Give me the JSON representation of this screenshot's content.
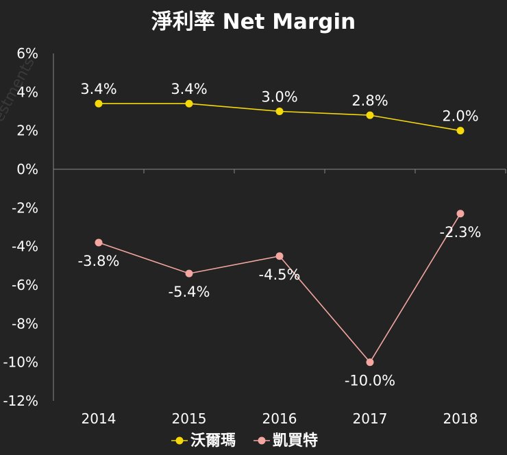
{
  "chart_data": {
    "type": "line",
    "title": "淨利率 Net Margin",
    "categories": [
      "2014",
      "2015",
      "2016",
      "2017",
      "2018"
    ],
    "ylim": [
      -12,
      6
    ],
    "yticks": [
      6,
      4,
      2,
      0,
      -2,
      -4,
      -6,
      -8,
      -10,
      -12
    ],
    "ytick_labels": [
      "6%",
      "4%",
      "2%",
      "0%",
      "-2%",
      "-4%",
      "-6%",
      "-8%",
      "-10%",
      "-12%"
    ],
    "series": [
      {
        "name": "沃爾瑪",
        "values": [
          3.4,
          3.4,
          3.0,
          2.8,
          2.0
        ],
        "labels": [
          "3.4%",
          "3.4%",
          "3.0%",
          "2.8%",
          "2.0%"
        ],
        "color": "#F5D90A",
        "label_position": "above"
      },
      {
        "name": "凱買特",
        "values": [
          -3.8,
          -5.4,
          -4.5,
          -10.0,
          -2.3
        ],
        "labels": [
          "-3.8%",
          "-5.4%",
          "-4.5%",
          "-10.0%",
          "-2.3%"
        ],
        "color": "#F4A6A0",
        "label_position": "below"
      }
    ],
    "legend_position": "bottom-center",
    "grid": false
  },
  "watermark": "Investments"
}
